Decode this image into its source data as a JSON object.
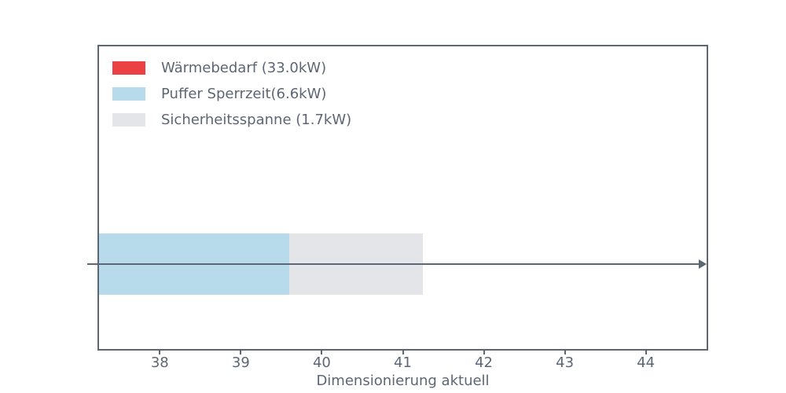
{
  "legend": {
    "items": [
      {
        "label": "Wärmebedarf (33.0kW)",
        "color": "#ec4144"
      },
      {
        "label": "Puffer Sperrzeit(6.6kW)",
        "color": "#b8dbec"
      },
      {
        "label": "Sicherheitsspanne (1.7kW)",
        "color": "#e3e5e9"
      }
    ]
  },
  "x_axis": {
    "label": "Dimensionierung aktuell",
    "ticks": [
      "38",
      "39",
      "40",
      "41",
      "42",
      "43",
      "44"
    ]
  },
  "colors": {
    "axis": "#5d6675",
    "background": "#ffffff"
  },
  "chart_data": {
    "type": "bar",
    "orientation": "horizontal",
    "title": "",
    "xlabel": "Dimensionierung aktuell",
    "ylabel": "",
    "xlim": [
      37.25,
      44.75
    ],
    "xticks": [
      38,
      39,
      40,
      41,
      42,
      43,
      44
    ],
    "grid": false,
    "legend_position": "upper-left",
    "series": [
      {
        "name": "Wärmebedarf (33.0kW)",
        "value_kw": 33.0,
        "start": 0.0,
        "end": 33.0,
        "color": "#ec4144",
        "visible_in_plot": false
      },
      {
        "name": "Puffer Sperrzeit(6.6kW)",
        "value_kw": 6.6,
        "start": 33.0,
        "end": 39.6,
        "color": "#b8dbec",
        "visible_in_plot": true
      },
      {
        "name": "Sicherheitsspanne (1.7kW)",
        "value_kw": 1.7,
        "start": 39.6,
        "end": 41.25,
        "color": "#e3e5e9",
        "visible_in_plot": true
      }
    ],
    "arrow": {
      "direction": "right",
      "spans_full_width": true
    }
  }
}
